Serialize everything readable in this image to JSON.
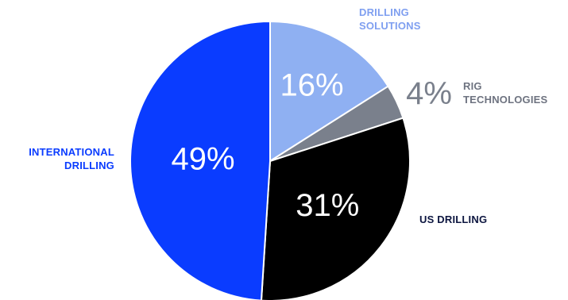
{
  "chart_data": {
    "type": "pie",
    "slices": [
      {
        "label": "DRILLING\nSOLUTIONS",
        "value": 16,
        "display": "16%",
        "color": "#8fb0f2",
        "label_color": "#7f9ff0",
        "pct_color": "#ffffff"
      },
      {
        "label": "RIG\nTECHNOLOGIES",
        "value": 4,
        "display": "4%",
        "color": "#7a808c",
        "label_color": "#6e7380",
        "pct_color": "#7a808c"
      },
      {
        "label": "US DRILLING",
        "value": 31,
        "display": "31%",
        "color": "#000000",
        "label_color": "#0d1640",
        "pct_color": "#ffffff"
      },
      {
        "label": "INTERNATIONAL\nDRILLING",
        "value": 49,
        "display": "49%",
        "color": "#0a3cff",
        "label_color": "#0a3cff",
        "pct_color": "#ffffff"
      }
    ],
    "start_angle_deg": 0,
    "direction": "clockwise",
    "slice_border_color": "#ffffff"
  }
}
